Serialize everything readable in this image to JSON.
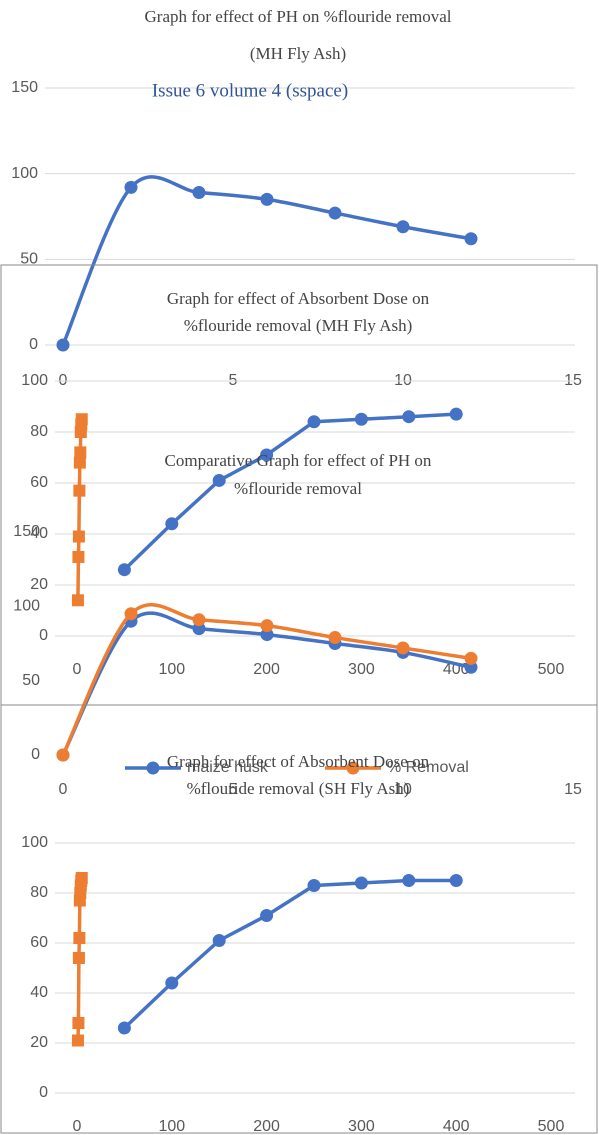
{
  "chart_data": [
    {
      "type": "line",
      "title": [
        "Graph for effect of PH on %flouride removal",
        "(MH Fly Ash)"
      ],
      "annotation": "Issue 6 volume 4 (sspace)",
      "xlim": [
        0,
        15
      ],
      "xticks": [
        0,
        5,
        10,
        15
      ],
      "ylim": [
        0,
        150
      ],
      "yticks": [
        0,
        50,
        100,
        150
      ],
      "grid": true,
      "smooth": true,
      "series": [
        {
          "color": "#4472c4",
          "marker": "circle",
          "x": [
            0,
            2,
            4,
            6,
            8,
            10,
            12
          ],
          "values": [
            0,
            92,
            89,
            85,
            77,
            69,
            62
          ]
        }
      ]
    },
    {
      "type": "line",
      "title": [
        "Graph for effect of Absorbent Dose on",
        "%flouride removal (MH Fly Ash)"
      ],
      "xlim": [
        0,
        500
      ],
      "xticks": [
        0,
        100,
        200,
        300,
        400,
        500
      ],
      "ylim": [
        0,
        100
      ],
      "yticks": [
        0,
        20,
        40,
        60,
        80,
        100
      ],
      "grid": true,
      "smooth": false,
      "series": [
        {
          "color": "#4472c4",
          "marker": "circle",
          "x": [
            50,
            100,
            150,
            200,
            250,
            300,
            350,
            400
          ],
          "values": [
            26,
            44,
            61,
            71,
            84,
            85,
            86,
            87
          ]
        },
        {
          "color": "#ed7d31",
          "marker": "square",
          "x": [
            1,
            1.5,
            2,
            2.5,
            3,
            3.5,
            4,
            4.5,
            5
          ],
          "values": [
            14,
            31,
            39,
            57,
            68,
            72,
            80,
            83,
            85
          ]
        }
      ]
    },
    {
      "type": "line",
      "title": [
        "Comparative Graph for effect of PH on",
        "%flouride removal"
      ],
      "xlim": [
        0,
        15
      ],
      "xticks": [
        0,
        5,
        10,
        15
      ],
      "ylim": [
        0,
        150
      ],
      "yticks": [
        0,
        50,
        100,
        150
      ],
      "grid": false,
      "smooth": true,
      "legend": "bottom",
      "series": [
        {
          "name": "maize husk",
          "color": "#4472c4",
          "marker": "circle",
          "x": [
            0,
            2,
            4,
            6,
            8,
            10,
            12
          ],
          "values": [
            0,
            90,
            85,
            81,
            75,
            69,
            59
          ]
        },
        {
          "name": "% Removal",
          "color": "#ed7d31",
          "marker": "circle",
          "x": [
            0,
            2,
            4,
            6,
            8,
            10,
            12
          ],
          "values": [
            0,
            95,
            91,
            87,
            79,
            72,
            65
          ]
        }
      ]
    },
    {
      "type": "line",
      "title": [
        "Graph for effect of Absorbent Dose on",
        "%flouride removal (SH Fly Ash)"
      ],
      "xlim": [
        0,
        500
      ],
      "xticks": [
        0,
        100,
        200,
        300,
        400,
        500
      ],
      "ylim": [
        0,
        100
      ],
      "yticks": [
        0,
        20,
        40,
        60,
        80,
        100
      ],
      "grid": true,
      "smooth": false,
      "series": [
        {
          "color": "#4472c4",
          "marker": "circle",
          "x": [
            50,
            100,
            150,
            200,
            250,
            300,
            350,
            400
          ],
          "values": [
            26,
            44,
            61,
            71,
            83,
            84,
            85,
            85
          ]
        },
        {
          "color": "#ed7d31",
          "marker": "square",
          "x": [
            1,
            1.5,
            2,
            2.5,
            3,
            3.5,
            4,
            4.5,
            5
          ],
          "values": [
            21,
            28,
            54,
            62,
            77,
            80,
            83,
            85,
            86
          ]
        }
      ]
    }
  ]
}
